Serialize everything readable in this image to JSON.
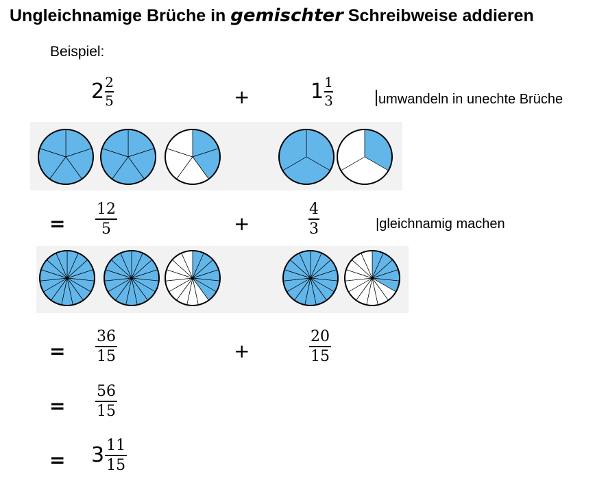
{
  "title": {
    "part1": "Ungleichnamige Brüche in",
    "emphasis": "gemischter",
    "part2": "Schreibweise addieren"
  },
  "example_label": "Beispiel:",
  "operators": {
    "plus": "+",
    "equals": "="
  },
  "notes": {
    "convert": "umwandeln in unechte Brüche",
    "common_denominator": "|gleichnamig machen"
  },
  "step1": {
    "left": {
      "whole": "2",
      "numerator": "2",
      "denominator": "5"
    },
    "right": {
      "whole": "1",
      "numerator": "1",
      "denominator": "3"
    }
  },
  "step2": {
    "left": {
      "numerator": "12",
      "denominator": "5"
    },
    "right": {
      "numerator": "4",
      "denominator": "3"
    }
  },
  "step3": {
    "left": {
      "numerator": "36",
      "denominator": "15"
    },
    "right": {
      "numerator": "20",
      "denominator": "15"
    }
  },
  "step4": {
    "numerator": "56",
    "denominator": "15"
  },
  "result": {
    "whole": "3",
    "numerator": "11",
    "denominator": "15"
  },
  "visuals": {
    "fill_color": "#62b6ea",
    "panel_color": "#f2f2f2",
    "row1": [
      {
        "slices": 5,
        "filled": 5
      },
      {
        "slices": 5,
        "filled": 5
      },
      {
        "slices": 5,
        "filled": 2
      },
      {
        "slices": 3,
        "filled": 3
      },
      {
        "slices": 3,
        "filled": 1
      }
    ],
    "row2": [
      {
        "slices": 15,
        "filled": 15
      },
      {
        "slices": 15,
        "filled": 15
      },
      {
        "slices": 15,
        "filled": 6
      },
      {
        "slices": 15,
        "filled": 15
      },
      {
        "slices": 15,
        "filled": 5
      }
    ]
  }
}
